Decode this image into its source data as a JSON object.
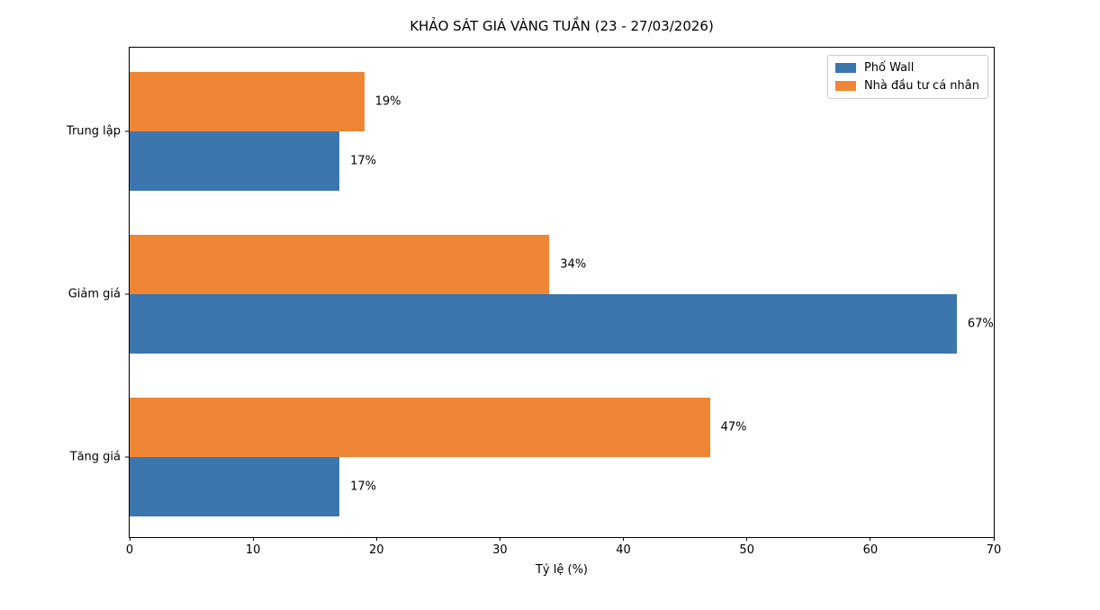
{
  "title": "KHẢO SÁT GIÁ VÀNG TUẦN (23 - 27/03/2026)",
  "chart_data": {
    "type": "bar",
    "orientation": "horizontal",
    "title": "KHẢO SÁT GIÁ VÀNG TUẦN (23 - 27/03/2026)",
    "xlabel": "Tỷ lệ (%)",
    "ylabel": "",
    "categories": [
      "Trung lập",
      "Giảm giá",
      "Tăng giá"
    ],
    "series": [
      {
        "name": "Phố Wall",
        "color": "#3b76af",
        "values": [
          17,
          67,
          17
        ]
      },
      {
        "name": "Nhà đầu tư cá nhân",
        "color": "#ee8635",
        "values": [
          19,
          34,
          47
        ]
      }
    ],
    "bar_labels": [
      "17%",
      "67%",
      "17%",
      "19%",
      "34%",
      "47%"
    ],
    "label_format": "{value}%",
    "xlim": [
      0,
      70
    ],
    "xticks": [
      0,
      10,
      20,
      30,
      40,
      50,
      60,
      70
    ],
    "grid": false,
    "legend_position": "upper right"
  }
}
